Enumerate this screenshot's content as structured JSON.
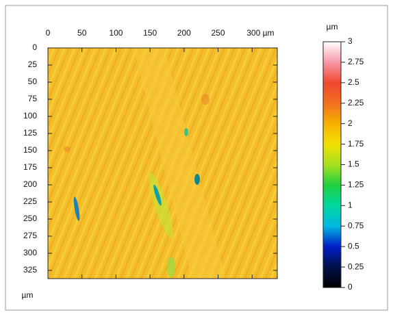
{
  "chart_data": {
    "type": "heatmap",
    "x_unit": "µm",
    "y_unit": "µm",
    "colorbar_unit": "µm",
    "xlim": [
      0,
      337
    ],
    "ylim": [
      0,
      337
    ],
    "xticks": [
      0,
      50,
      100,
      150,
      200,
      250,
      {
        "value": 300,
        "label": "300 µm"
      }
    ],
    "yticks": [
      0,
      25,
      50,
      75,
      100,
      125,
      150,
      175,
      200,
      225,
      250,
      275,
      300,
      325
    ],
    "clim": [
      0,
      3
    ],
    "cticks": [
      0,
      0.25,
      0.5,
      0.75,
      1,
      1.25,
      1.5,
      1.75,
      2,
      2.25,
      2.5,
      2.75,
      3
    ],
    "colorscale": [
      "#000000",
      "#00104a",
      "#0020c8",
      "#00b8e0",
      "#00d8a0",
      "#20d040",
      "#a8e020",
      "#f0e000",
      "#f8b000",
      "#f07020",
      "#f04830",
      "#f898a8",
      "#ffffff"
    ]
  }
}
